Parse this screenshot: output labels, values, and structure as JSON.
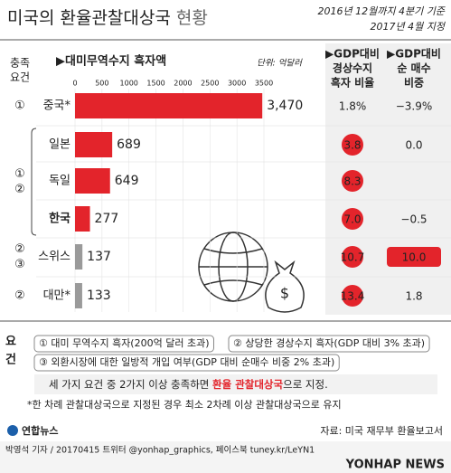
{
  "header": {
    "title": "미국의 환율관찰대상국",
    "title_light": "현황",
    "basis": "2016년 12월까지 4분기 기준",
    "designated": "2017년 4월 지정"
  },
  "chart_data": {
    "type": "bar",
    "orientation": "horizontal",
    "subtitle": "▶대미무역수지 흑자액",
    "unit": "단위: 억달러",
    "conditions_header": [
      "충족",
      "요건"
    ],
    "categories": [
      "중국*",
      "일본",
      "독일",
      "한국",
      "스위스",
      "대만*"
    ],
    "conditions": [
      [
        "①"
      ],
      [
        "①",
        "②"
      ],
      null,
      null,
      [
        "②",
        "③"
      ],
      [
        "②"
      ]
    ],
    "values": [
      3470,
      689,
      649,
      277,
      137,
      133
    ],
    "value_labels": [
      "3,470",
      "689",
      "649",
      "277",
      "137",
      "133"
    ],
    "colors": [
      "#e3242b",
      "#e3242b",
      "#e3242b",
      "#e3242b",
      "#9a9a9a",
      "#9a9a9a"
    ],
    "xlim": [
      0,
      3500
    ],
    "xticks": [
      0,
      500,
      1000,
      1500,
      2000,
      2500,
      3000,
      3500
    ],
    "highlight_color": "#e3242b",
    "columns": [
      {
        "header": [
          "▶GDP대비",
          "경상수지",
          "흑자 비율"
        ],
        "values": [
          1.8,
          3.8,
          8.3,
          7.0,
          10.7,
          13.4
        ],
        "value_labels": [
          "1.8%",
          "3.8",
          "8.3",
          "7.0",
          "10.7",
          "13.4"
        ],
        "highlight": [
          false,
          true,
          true,
          true,
          true,
          true
        ]
      },
      {
        "header": [
          "▶GDP대비",
          "순 매수",
          "비중"
        ],
        "values": [
          -3.9,
          0.0,
          null,
          -0.5,
          10.0,
          1.8
        ],
        "value_labels": [
          "−3.9%",
          "0.0",
          null,
          "−0.5",
          "10.0",
          "1.8"
        ],
        "highlight": [
          false,
          false,
          false,
          false,
          true,
          false
        ]
      }
    ]
  },
  "requirements": {
    "label": [
      "요",
      "건"
    ],
    "items": [
      "① 대미 무역수지 흑자(200억 달러 초과)",
      "② 상당한 경상수지 흑자(GDP 대비 3% 초과)",
      "③ 외환시장에 대한 일방적 개입 여부(GDP 대비 순매수 비중 2% 초과)"
    ],
    "note": [
      "세 가지 요건 중 2가지 이상 충족하면 ",
      "환율 관찰대상국",
      "으로 지정."
    ],
    "footnote": "*한 차례 관찰대상국으로 지정된 경우 최소 2차례 이상 관찰대상국으로 유지"
  },
  "footer": {
    "logo": "연합뉴스",
    "source": "자료: 미국 재무부 환율보고서",
    "credit": "박영석 기자 / 20170415  트위터 @yonhap_graphics, 페이스북 tuney.kr/LeYN1",
    "watermark": "YONHAP NEWS"
  }
}
